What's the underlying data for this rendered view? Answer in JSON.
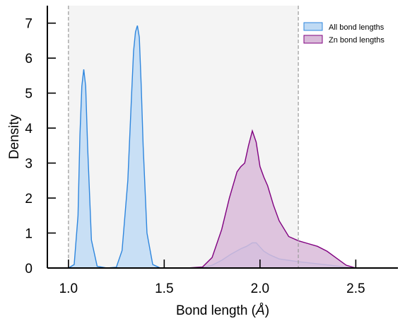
{
  "chart_data": {
    "type": "area",
    "xlabel": "Bond length (",
    "xlabel_unit": "Å",
    "xlabel_close": ")",
    "ylabel": "Density",
    "xlim": [
      0.89,
      2.72
    ],
    "ylim": [
      0,
      7.5
    ],
    "x_ticks": [
      "1.0",
      "1.5",
      "2.0",
      "2.5"
    ],
    "x_tick_values": [
      1.0,
      1.5,
      2.0,
      2.5
    ],
    "y_ticks": [
      "0",
      "1",
      "2",
      "3",
      "4",
      "5",
      "6",
      "7"
    ],
    "y_tick_values": [
      0,
      1,
      2,
      3,
      4,
      5,
      6,
      7
    ],
    "shaded_region": {
      "x": [
        1.0,
        2.2
      ],
      "color": "#f4f4f4"
    },
    "reference_lines": [
      1.0,
      2.2
    ],
    "legend_position": "top-right",
    "series": [
      {
        "name": "All bond lengths",
        "line_color": "#2e86de",
        "fill_color": "#bfdaf4",
        "x": [
          1.0,
          1.03,
          1.05,
          1.06,
          1.07,
          1.08,
          1.09,
          1.1,
          1.12,
          1.15,
          1.2,
          1.25,
          1.28,
          1.31,
          1.33,
          1.34,
          1.35,
          1.36,
          1.37,
          1.38,
          1.39,
          1.41,
          1.44,
          1.48,
          1.55,
          1.65,
          1.7,
          1.75,
          1.8,
          1.85,
          1.9,
          1.93,
          1.96,
          1.98,
          2.0,
          2.02,
          2.05,
          2.1,
          2.15,
          2.2,
          2.3,
          2.4,
          2.45,
          2.5
        ],
        "y": [
          0,
          0.1,
          1.5,
          3.8,
          5.2,
          5.68,
          5.2,
          3.5,
          0.8,
          0.05,
          0,
          0.02,
          0.5,
          2.5,
          5.0,
          6.2,
          6.75,
          6.93,
          6.6,
          5.2,
          3.5,
          1.0,
          0.1,
          0,
          0,
          0,
          0.01,
          0.08,
          0.22,
          0.4,
          0.55,
          0.62,
          0.72,
          0.72,
          0.6,
          0.48,
          0.38,
          0.26,
          0.22,
          0.18,
          0.12,
          0.06,
          0.02,
          0
        ]
      },
      {
        "name": "Zn bond lengths",
        "line_color": "#800080",
        "fill_color": "#d9bbd9",
        "x": [
          1.62,
          1.7,
          1.75,
          1.8,
          1.84,
          1.88,
          1.9,
          1.92,
          1.94,
          1.96,
          1.98,
          2.0,
          2.02,
          2.04,
          2.07,
          2.1,
          2.15,
          2.2,
          2.25,
          2.3,
          2.35,
          2.4,
          2.45,
          2.5
        ],
        "y": [
          0,
          0.03,
          0.3,
          1.1,
          2.0,
          2.75,
          2.9,
          3.0,
          3.5,
          3.92,
          3.6,
          2.9,
          2.6,
          2.35,
          1.8,
          1.35,
          0.9,
          0.78,
          0.7,
          0.62,
          0.48,
          0.28,
          0.08,
          0
        ]
      }
    ]
  }
}
